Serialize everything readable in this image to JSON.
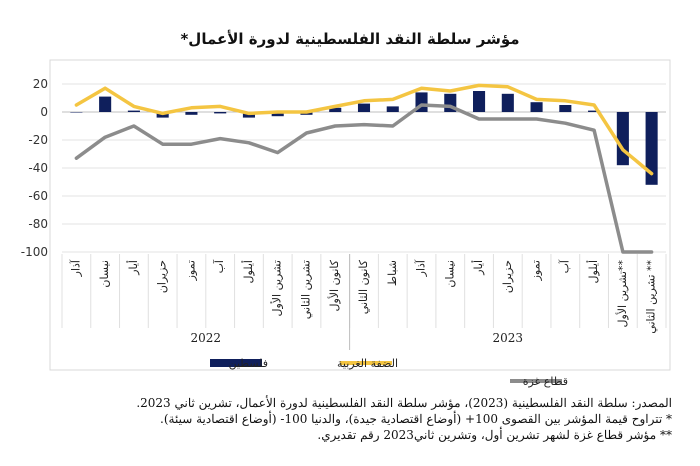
{
  "chart_data": {
    "type": "bar+line",
    "title": "مؤشر سلطة النقد الفلسطينية لدورة الأعمال*",
    "categories": [
      "آذار",
      "نيسان",
      "أيار",
      "حزيران",
      "تموز",
      "آب",
      "أيلول",
      "تشرين الأول",
      "تشرين الثاني",
      "كانون الأول",
      "كانون الثاني",
      "شباط",
      "آذار",
      "نيسان",
      "أيار",
      "حزيران",
      "تموز",
      "آب",
      "أيلول",
      "تشرين الأول**",
      "تشرين الثاني **"
    ],
    "year_groups": [
      {
        "label": "2022",
        "from": 0,
        "to": 9
      },
      {
        "label": "2023",
        "from": 10,
        "to": 20
      }
    ],
    "ylim": [
      -100,
      20
    ],
    "yticks": [
      20,
      0,
      -20,
      -40,
      -60,
      -80,
      -100
    ],
    "grid": true,
    "series": [
      {
        "name": "فلسطين",
        "kind": "bar",
        "color": "#0f1f5c",
        "values": [
          0,
          11,
          1,
          -4,
          -2,
          -1,
          -4,
          -3,
          -2,
          3,
          6,
          4,
          14,
          13,
          15,
          13,
          7,
          5,
          1,
          -38,
          -52
        ]
      },
      {
        "name": "الضفة الغربية",
        "kind": "line",
        "color": "#f4c542",
        "values": [
          5,
          17,
          4,
          -1,
          3,
          4,
          -1,
          0,
          0,
          4,
          8,
          9,
          17,
          15,
          19,
          18,
          9,
          8,
          5,
          -27,
          -44
        ]
      },
      {
        "name": "قطاع غزة",
        "kind": "line",
        "color": "#8c8c8c",
        "values": [
          -33,
          -18,
          -10,
          -23,
          -23,
          -19,
          -22,
          -29,
          -15,
          -10,
          -9,
          -10,
          5,
          4,
          -5,
          -5,
          -5,
          -8,
          -13,
          -100,
          -100
        ]
      }
    ],
    "legend_position": "bottom"
  },
  "notes": {
    "source": "المصدر: سلطة النقد الفلسطينية (2023)، مؤشر سلطة النقد الفلسطينية لدورة الأعمال، تشرين ثاني 2023.",
    "note1": "* تتراوح قيمة المؤشر بين القصوى 100+ (أوضاع اقتصادية جيدة)، والدنيا 100- (أوضاع اقتصادية سيئة).",
    "note2": "** مؤشر قطاع غزة لشهر تشرين أول، وتشرين ثاني2023 رقم تقديري."
  }
}
